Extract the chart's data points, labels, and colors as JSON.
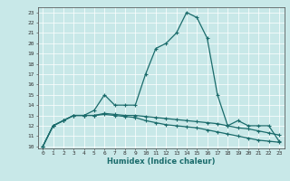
{
  "xlabel": "Humidex (Indice chaleur)",
  "bg_color": "#c8e8e8",
  "grid_color": "#aaaaaa",
  "line_color": "#1a6b6b",
  "xlim": [
    -0.5,
    23.5
  ],
  "ylim": [
    9.8,
    23.5
  ],
  "xticks": [
    0,
    1,
    2,
    3,
    4,
    5,
    6,
    7,
    8,
    9,
    10,
    11,
    12,
    13,
    14,
    15,
    16,
    17,
    18,
    19,
    20,
    21,
    22,
    23
  ],
  "yticks": [
    10,
    11,
    12,
    13,
    14,
    15,
    16,
    17,
    18,
    19,
    20,
    21,
    22,
    23
  ],
  "series": [
    {
      "x": [
        0,
        1,
        2,
        3,
        4,
        5,
        6,
        7,
        8,
        9,
        10,
        11,
        12,
        13,
        14,
        15,
        16,
        17,
        18,
        19,
        20,
        21,
        22,
        23
      ],
      "y": [
        10,
        12,
        12.5,
        13,
        13,
        13.5,
        15,
        14,
        14,
        14,
        17,
        19.5,
        20,
        21,
        23,
        22.5,
        20.5,
        15,
        12,
        12.5,
        12,
        12,
        12,
        10.5
      ]
    },
    {
      "x": [
        0,
        1,
        2,
        3,
        4,
        5,
        6,
        7,
        8,
        9,
        10,
        11,
        12,
        13,
        14,
        15,
        16,
        17,
        18,
        19,
        20,
        21,
        22,
        23
      ],
      "y": [
        10,
        12,
        12.5,
        13,
        13,
        13,
        13.2,
        13.1,
        13,
        13,
        12.9,
        12.8,
        12.7,
        12.6,
        12.5,
        12.4,
        12.3,
        12.2,
        12.0,
        11.8,
        11.7,
        11.5,
        11.3,
        11.1
      ]
    },
    {
      "x": [
        0,
        1,
        2,
        3,
        4,
        5,
        6,
        7,
        8,
        9,
        10,
        11,
        12,
        13,
        14,
        15,
        16,
        17,
        18,
        19,
        20,
        21,
        22,
        23
      ],
      "y": [
        10,
        12,
        12.5,
        13,
        13.0,
        13.0,
        13.1,
        13.0,
        12.9,
        12.8,
        12.5,
        12.3,
        12.1,
        12.0,
        11.9,
        11.8,
        11.6,
        11.4,
        11.2,
        11.0,
        10.8,
        10.6,
        10.5,
        10.4
      ]
    }
  ]
}
